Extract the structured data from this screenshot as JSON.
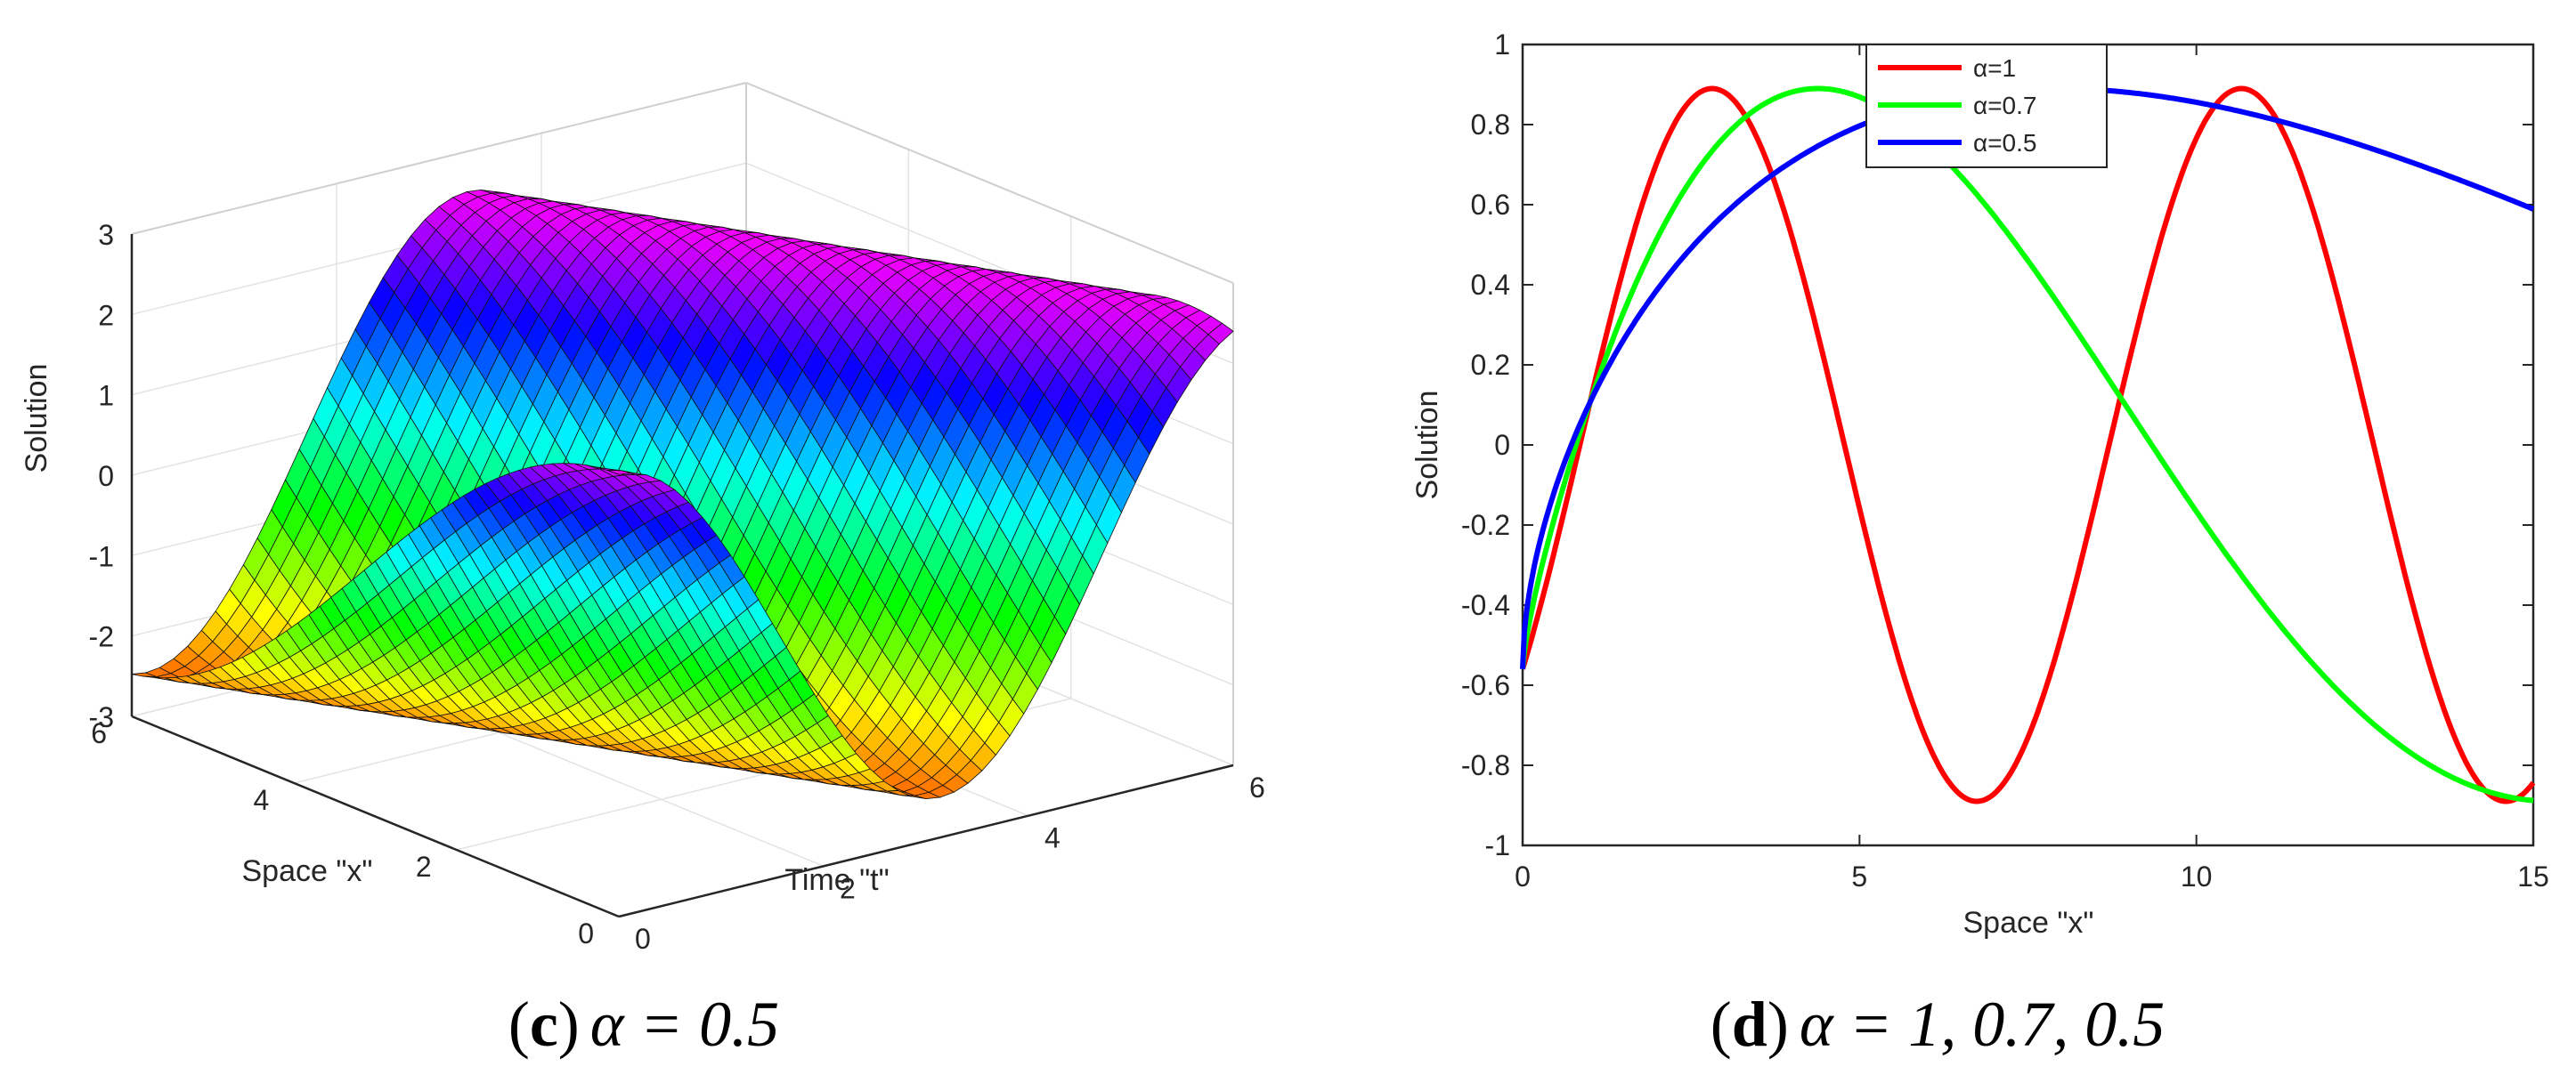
{
  "chart_data": [
    {
      "type": "surface",
      "id": "c",
      "caption": {
        "letter": "c",
        "text": "α = 0.5"
      },
      "zlabel": "Solution",
      "xlabel": "Time \"t\"",
      "ylabel": "Space \"x\"",
      "t_range": [
        0,
        6
      ],
      "x_range": [
        0,
        6
      ],
      "z_range": [
        -3,
        3
      ],
      "z_ticks": [
        "3",
        "2",
        "1",
        "0",
        "-1",
        "-2",
        "-3"
      ],
      "t_ticks": [
        "0",
        "2",
        "4",
        "6"
      ],
      "x_ticks": [
        "0",
        "2",
        "4",
        "6"
      ],
      "alpha": 0.5,
      "grid": true,
      "colormap": "hsv"
    },
    {
      "type": "line",
      "id": "d",
      "caption": {
        "letter": "d",
        "text": "α = 1, 0.7, 0.5"
      },
      "xlabel": "Space \"x\"",
      "ylabel": "Solution",
      "xlim": [
        0,
        15
      ],
      "ylim": [
        -1,
        1
      ],
      "x_ticks": [
        "0",
        "5",
        "10",
        "15"
      ],
      "y_ticks": [
        "1",
        "0.8",
        "0.6",
        "0.4",
        "0.2",
        "0",
        "-0.2",
        "-0.4",
        "-0.6",
        "-0.8",
        "-1"
      ],
      "legend_position": "top-center",
      "series": [
        {
          "name": "α=1",
          "color": "#ff0000",
          "alpha": 1.0
        },
        {
          "name": "α=0.7",
          "color": "#00ff00",
          "alpha": 0.7
        },
        {
          "name": "α=0.5",
          "color": "#0000ff",
          "alpha": 0.5
        }
      ],
      "curve": {
        "amplitude": 0.89,
        "phase": 0.68,
        "omega": 0.8
      }
    }
  ]
}
